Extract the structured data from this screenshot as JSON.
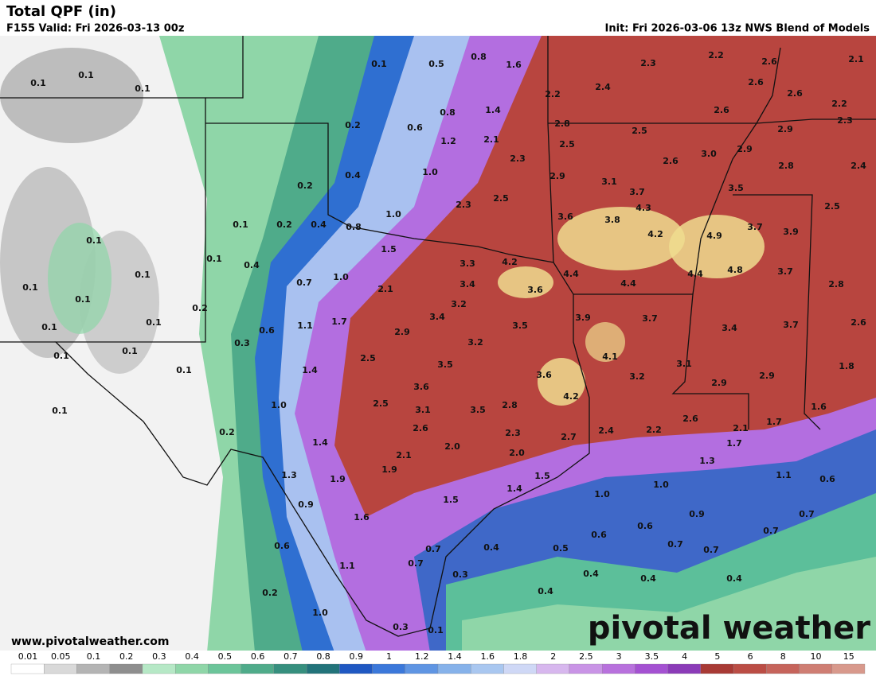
{
  "header": {
    "title": "Total QPF (in)",
    "valid": "F155 Valid: Fri 2026-03-13 00z",
    "init": "Init: Fri 2026-03-06 13z NWS Blend of Models"
  },
  "map": {
    "labels": [
      "0.1",
      "0.5",
      "0.8",
      "1.6",
      "2.3",
      "2.2",
      "2.6",
      "2.1",
      "0.1",
      "0.1",
      "0.1",
      "2.4",
      "2.2",
      "2.6",
      "2.6",
      "2.2",
      "0.8",
      "1.4",
      "2.6",
      "0.2",
      "0.6",
      "2.8",
      "2.5",
      "2.9",
      "2.3",
      "1.2",
      "2.1",
      "2.5",
      "3.0",
      "2.9",
      "2.3",
      "2.6",
      "2.8",
      "2.4",
      "0.4",
      "1.0",
      "2.9",
      "3.1",
      "0.2",
      "3.7",
      "3.5",
      "2.3",
      "2.5",
      "4.3",
      "2.5",
      "1.0",
      "3.6",
      "3.8",
      "0.1",
      "0.2",
      "0.4",
      "0.8",
      "3.7",
      "3.9",
      "4.2",
      "4.9",
      "0.1",
      "1.5",
      "3.3",
      "4.2",
      "0.1",
      "0.4",
      "4.8",
      "3.7",
      "0.1",
      "1.0",
      "4.4",
      "4.4",
      "4.4",
      "0.1",
      "0.7",
      "3.4",
      "2.8",
      "0.1",
      "2.1",
      "3.6",
      "0.2",
      "3.2",
      "0.1",
      "1.7",
      "3.9",
      "3.7",
      "0.1",
      "1.1",
      "3.4",
      "3.5",
      "3.4",
      "3.7",
      "2.6",
      "0.6",
      "2.9",
      "0.3",
      "3.2",
      "0.1",
      "0.1",
      "2.5",
      "4.1",
      "1.4",
      "3.5",
      "3.1",
      "1.8",
      "0.1",
      "3.6",
      "3.2",
      "2.9",
      "3.6",
      "2.9",
      "0.1",
      "1.0",
      "2.5",
      "4.2",
      "3.1",
      "3.5",
      "2.8",
      "1.6",
      "2.6",
      "2.6",
      "1.7",
      "0.2",
      "2.3",
      "2.7",
      "2.4",
      "2.2",
      "2.1",
      "1.4",
      "2.0",
      "1.7",
      "2.1",
      "2.0",
      "1.3",
      "1.9",
      "1.9",
      "1.5",
      "1.3",
      "1.4",
      "1.0",
      "1.1",
      "0.6",
      "1.0",
      "1.5",
      "0.9",
      "0.9",
      "0.7",
      "1.6",
      "0.6",
      "0.7",
      "0.6",
      "0.6",
      "0.7",
      "0.4",
      "0.5",
      "0.7",
      "0.7",
      "1.1",
      "0.7",
      "0.3",
      "0.4",
      "0.4",
      "0.4",
      "0.2",
      "0.4",
      "1.0",
      "0.3",
      "0.1"
    ]
  },
  "url": "www.pivotalweather.com",
  "watermark": "pivotal weather",
  "legend": {
    "labels": [
      "0.01",
      "0.05",
      "0.1",
      "0.2",
      "0.3",
      "0.4",
      "0.5",
      "0.6",
      "0.7",
      "0.8",
      "0.9",
      "1",
      "1.2",
      "1.4",
      "1.6",
      "1.8",
      "2",
      "2.5",
      "3",
      "3.5",
      "4",
      "5",
      "6",
      "8",
      "10",
      "15"
    ],
    "colors": [
      "#ffffff",
      "#d9d9d9",
      "#b4b4b4",
      "#8e8e8e",
      "#b6e8c6",
      "#8fd6a8",
      "#6cc59a",
      "#4fab8a",
      "#368f7e",
      "#22737a",
      "#1f58c2",
      "#3b78da",
      "#5f95e3",
      "#86b2ea",
      "#a9c7f0",
      "#cfd8f6",
      "#d7b7ee",
      "#c994e6",
      "#b871dd",
      "#a451d2",
      "#8b3bb8",
      "#a83a35",
      "#bb4d45",
      "#c6645b",
      "#cf7e73",
      "#d8998c"
    ]
  }
}
